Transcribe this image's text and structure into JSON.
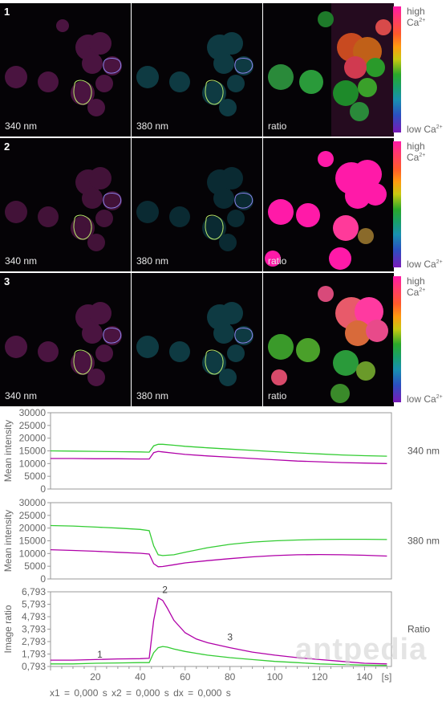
{
  "rows": [
    {
      "num": "1",
      "labels": [
        "340 nm",
        "380 nm",
        "ratio"
      ],
      "state": "baseline"
    },
    {
      "num": "2",
      "labels": [
        "340 nm",
        "380 nm",
        "ratio"
      ],
      "state": "peak"
    },
    {
      "num": "3",
      "labels": [
        "340 nm",
        "380 nm",
        "ratio"
      ],
      "state": "decay"
    }
  ],
  "colorbar": {
    "high": "high Ca",
    "low": "low Ca",
    "sup": "2+"
  },
  "colors": {
    "green_trace": "#33cc33",
    "magenta_trace": "#b000a8",
    "axis": "#999999"
  },
  "chart_data": [
    {
      "type": "line",
      "side_label": "340 nm",
      "ylabel": "Mean intensity",
      "ylim": [
        0,
        30000
      ],
      "yticks": [
        "30000",
        "25000",
        "20000",
        "15000",
        "10000",
        "5000",
        "0"
      ],
      "yvals": [
        30000,
        25000,
        20000,
        15000,
        10000,
        5000,
        0
      ],
      "xlim": [
        0,
        152
      ],
      "series": [
        {
          "color": "green",
          "x": [
            0,
            10,
            20,
            30,
            40,
            44,
            46,
            48,
            50,
            55,
            60,
            70,
            80,
            90,
            100,
            110,
            120,
            130,
            140,
            150
          ],
          "values": [
            15000,
            14900,
            14800,
            14700,
            14600,
            14500,
            17000,
            17600,
            17600,
            17200,
            16800,
            16200,
            15700,
            15200,
            14700,
            14200,
            13800,
            13400,
            13100,
            12900
          ]
        },
        {
          "color": "magenta",
          "x": [
            0,
            10,
            20,
            30,
            40,
            44,
            46,
            48,
            50,
            55,
            60,
            70,
            80,
            90,
            100,
            110,
            120,
            130,
            140,
            150
          ],
          "values": [
            12000,
            12000,
            11900,
            11900,
            11800,
            11800,
            14300,
            14800,
            14600,
            14100,
            13600,
            13000,
            12500,
            12000,
            11500,
            11000,
            10700,
            10400,
            10200,
            10000
          ]
        }
      ]
    },
    {
      "type": "line",
      "side_label": "380 nm",
      "ylabel": "Mean intensity",
      "ylim": [
        0,
        30000
      ],
      "yticks": [
        "30000",
        "25000",
        "20000",
        "15000",
        "10000",
        "5000",
        "0"
      ],
      "yvals": [
        30000,
        25000,
        20000,
        15000,
        10000,
        5000,
        0
      ],
      "xlim": [
        0,
        152
      ],
      "series": [
        {
          "color": "green",
          "x": [
            0,
            10,
            20,
            30,
            40,
            44,
            46,
            48,
            50,
            55,
            60,
            70,
            80,
            90,
            100,
            110,
            120,
            130,
            140,
            150
          ],
          "values": [
            21000,
            20800,
            20400,
            20000,
            19500,
            19000,
            13000,
            9500,
            9200,
            9500,
            10500,
            12300,
            13600,
            14500,
            15000,
            15300,
            15500,
            15600,
            15600,
            15500
          ]
        },
        {
          "color": "magenta",
          "x": [
            0,
            10,
            20,
            30,
            40,
            44,
            46,
            48,
            50,
            55,
            60,
            70,
            80,
            90,
            100,
            110,
            120,
            130,
            140,
            150
          ],
          "values": [
            11500,
            11200,
            10900,
            10500,
            10100,
            9800,
            6000,
            4800,
            4900,
            5600,
            6300,
            7200,
            8000,
            8700,
            9200,
            9500,
            9600,
            9500,
            9300,
            9000
          ]
        }
      ]
    },
    {
      "type": "line",
      "side_label": "Ratio",
      "ylabel": "Image ratio",
      "xunit": "[s]",
      "ylim": [
        0.793,
        6.793
      ],
      "yticks": [
        "6,793",
        "5,793",
        "4,793",
        "3,793",
        "2,793",
        "1,793",
        "0,793"
      ],
      "yvals": [
        6.793,
        5.793,
        4.793,
        3.793,
        2.793,
        1.793,
        0.793
      ],
      "xlim": [
        0,
        152
      ],
      "xticks": [
        "20",
        "40",
        "60",
        "80",
        "100",
        "120",
        "140"
      ],
      "xvals": [
        20,
        40,
        60,
        80,
        100,
        120,
        140
      ],
      "annotations": [
        {
          "text": "1",
          "x": 22,
          "y": 1.5
        },
        {
          "text": "2",
          "x": 51,
          "y": 6.7
        },
        {
          "text": "3",
          "x": 80,
          "y": 2.9
        }
      ],
      "series": [
        {
          "color": "magenta",
          "x": [
            0,
            10,
            20,
            30,
            40,
            44,
            46,
            48,
            50,
            52,
            55,
            60,
            65,
            70,
            80,
            90,
            100,
            110,
            120,
            130,
            140,
            150
          ],
          "values": [
            1.3,
            1.3,
            1.35,
            1.4,
            1.42,
            1.45,
            4.5,
            6.3,
            6.1,
            5.5,
            4.5,
            3.5,
            3.0,
            2.7,
            2.3,
            1.95,
            1.7,
            1.5,
            1.35,
            1.2,
            1.05,
            1.0
          ]
        },
        {
          "color": "green",
          "x": [
            0,
            10,
            20,
            30,
            40,
            44,
            46,
            48,
            50,
            52,
            55,
            60,
            65,
            70,
            80,
            90,
            100,
            110,
            120,
            130,
            140,
            150
          ],
          "values": [
            1.0,
            1.0,
            1.05,
            1.08,
            1.1,
            1.1,
            1.9,
            2.3,
            2.4,
            2.35,
            2.2,
            2.0,
            1.85,
            1.7,
            1.5,
            1.35,
            1.2,
            1.1,
            1.0,
            0.95,
            0.9,
            0.88
          ]
        }
      ]
    }
  ],
  "status": "x1 = 0,000 s   x2 = 0,000 s   dx = 0,000 s",
  "watermark": "antpedia"
}
